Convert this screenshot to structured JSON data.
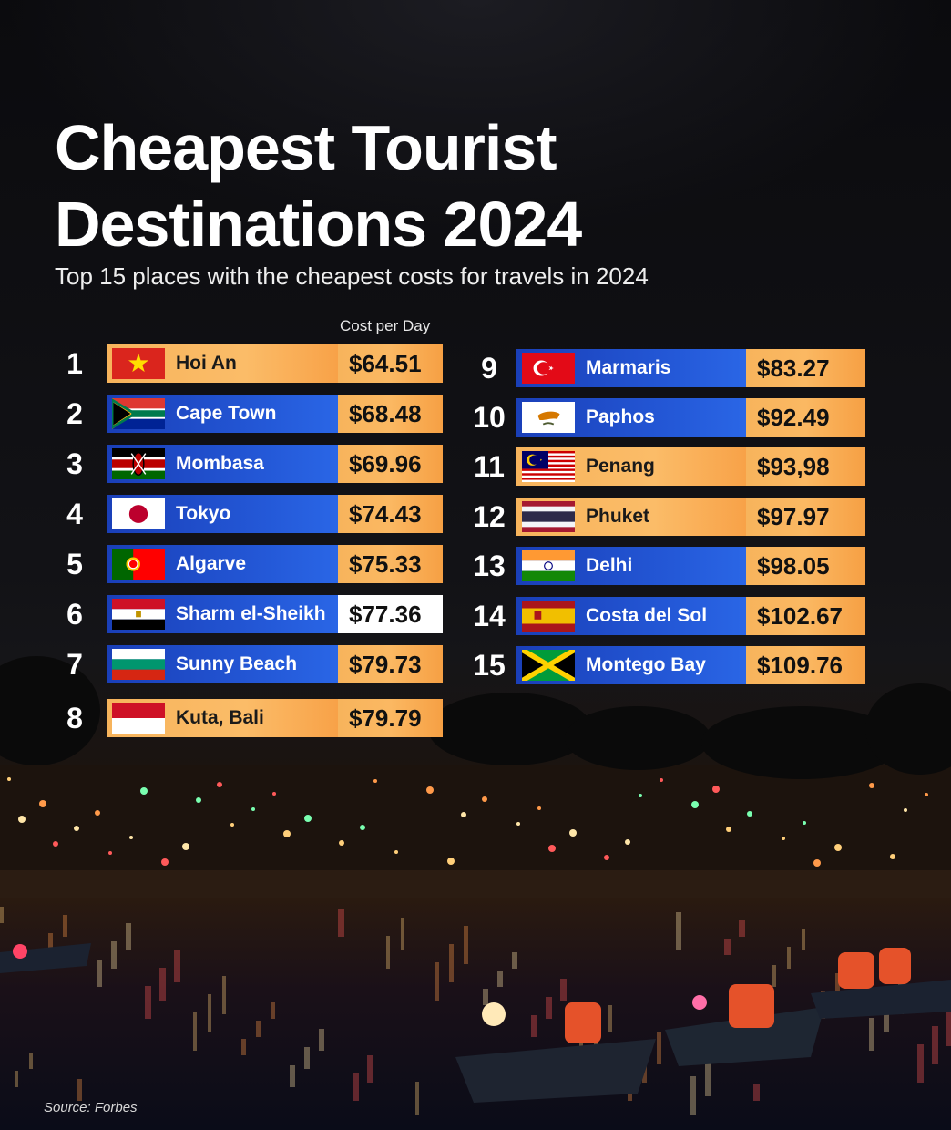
{
  "title_lines": [
    "Cheapest Tourist",
    "Destinations 2024"
  ],
  "subtitle": "Top 15 places with the cheapest costs for travels in 2024",
  "column_header": "Cost per Day",
  "source": "Source: Forbes",
  "colors": {
    "blue_bar": "#2459d8",
    "orange_bar": "#fbbc68",
    "text_dark": "#111111",
    "background": "#0c0c0f"
  },
  "chart_data": {
    "type": "table",
    "title": "Cheapest Tourist Destinations 2024",
    "subtitle": "Top 15 places with the cheapest costs for travels in 2024",
    "columns": [
      "Cost per Day"
    ],
    "rows": [
      {
        "rank": "1",
        "name": "Hoi An",
        "cost": "$64.51",
        "value": 64.51,
        "flag": "vietnam-flag-icon",
        "bar": "orange",
        "cost_style": "orange"
      },
      {
        "rank": "2",
        "name": "Cape Town",
        "cost": "$68.48",
        "value": 68.48,
        "flag": "south-africa-flag-icon",
        "bar": "blue",
        "cost_style": "orange"
      },
      {
        "rank": "3",
        "name": "Mombasa",
        "cost": "$69.96",
        "value": 69.96,
        "flag": "kenya-flag-icon",
        "bar": "blue",
        "cost_style": "orange"
      },
      {
        "rank": "4",
        "name": "Tokyo",
        "cost": "$74.43",
        "value": 74.43,
        "flag": "japan-flag-icon",
        "bar": "blue",
        "cost_style": "orange"
      },
      {
        "rank": "5",
        "name": "Algarve",
        "cost": "$75.33",
        "value": 75.33,
        "flag": "portugal-flag-icon",
        "bar": "blue",
        "cost_style": "orange"
      },
      {
        "rank": "6",
        "name": "Sharm el-Sheikh",
        "cost": "$77.36",
        "value": 77.36,
        "flag": "egypt-flag-icon",
        "bar": "blue",
        "cost_style": "plain"
      },
      {
        "rank": "7",
        "name": "Sunny Beach",
        "cost": "$79.73",
        "value": 79.73,
        "flag": "bulgaria-flag-icon",
        "bar": "blue",
        "cost_style": "orange"
      },
      {
        "rank": "8",
        "name": "Kuta, Bali",
        "cost": "$79.79",
        "value": 79.79,
        "flag": "indonesia-flag-icon",
        "bar": "orange",
        "cost_style": "orange"
      },
      {
        "rank": "9",
        "name": "Marmaris",
        "cost": "$83.27",
        "value": 83.27,
        "flag": "turkey-flag-icon",
        "bar": "blue",
        "cost_style": "orange"
      },
      {
        "rank": "10",
        "name": "Paphos",
        "cost": "$92.49",
        "value": 92.49,
        "flag": "cyprus-flag-icon",
        "bar": "blue",
        "cost_style": "orange"
      },
      {
        "rank": "11",
        "name": "Penang",
        "cost": "$93,98",
        "value": 93.98,
        "flag": "malaysia-flag-icon",
        "bar": "orange",
        "cost_style": "orange"
      },
      {
        "rank": "12",
        "name": "Phuket",
        "cost": "$97.97",
        "value": 97.97,
        "flag": "thailand-flag-icon",
        "bar": "orange",
        "cost_style": "orange"
      },
      {
        "rank": "13",
        "name": "Delhi",
        "cost": "$98.05",
        "value": 98.05,
        "flag": "india-flag-icon",
        "bar": "blue",
        "cost_style": "orange"
      },
      {
        "rank": "14",
        "name": "Costa del Sol",
        "cost": "$102.67",
        "value": 102.67,
        "flag": "spain-flag-icon",
        "bar": "blue",
        "cost_style": "orange"
      },
      {
        "rank": "15",
        "name": "Montego Bay",
        "cost": "$109.76",
        "value": 109.76,
        "flag": "jamaica-flag-icon",
        "bar": "blue",
        "cost_style": "orange"
      }
    ]
  }
}
